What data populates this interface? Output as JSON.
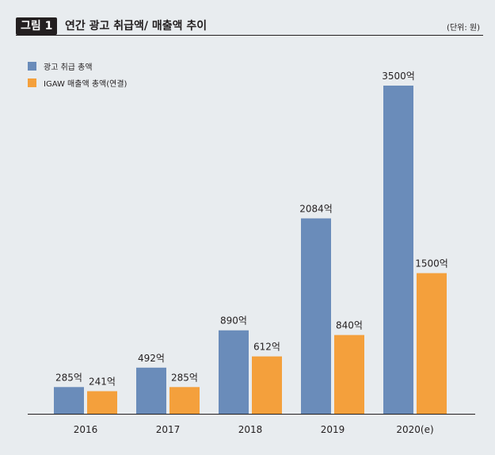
{
  "header": {
    "figure_label": "그림 1",
    "title": "연간 광고 취급액/ 매출액 추이",
    "unit": "(단위: 원)"
  },
  "chart_data": {
    "type": "bar",
    "categories": [
      "2016",
      "2017",
      "2018",
      "2019",
      "2020(e)"
    ],
    "series": [
      {
        "name": "광고 취급 총액",
        "color": "#6a8cba",
        "values": [
          285,
          492,
          890,
          2084,
          3500
        ],
        "labels": [
          "285억",
          "492억",
          "890억",
          "2084억",
          "3500억"
        ]
      },
      {
        "name": "IGAW 매출액 총액(연결)",
        "color": "#f4a03c",
        "values": [
          241,
          285,
          612,
          840,
          1500
        ],
        "labels": [
          "241억",
          "285억",
          "612억",
          "840억",
          "1500억"
        ]
      }
    ],
    "ylim": [
      0,
      3500
    ],
    "grid": false,
    "legend_position": "top-left"
  }
}
